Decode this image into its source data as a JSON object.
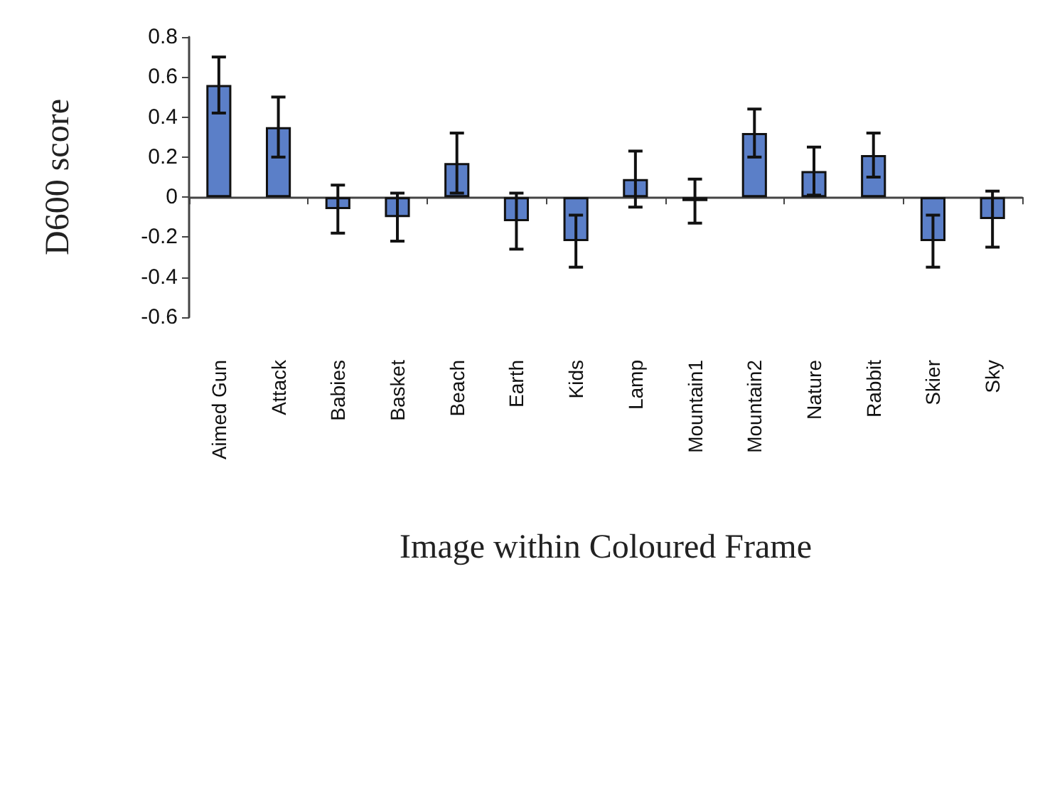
{
  "chart_data": {
    "type": "bar",
    "xlabel": "Image within Coloured Frame",
    "ylabel": "D600 score",
    "categories": [
      "Aimed Gun",
      "Attack",
      "Babies",
      "Basket",
      "Beach",
      "Earth",
      "Kids",
      "Lamp",
      "Mountain1",
      "Mountain2",
      "Nature",
      "Rabbit",
      "Skier",
      "Sky"
    ],
    "values": [
      0.56,
      0.35,
      -0.06,
      -0.1,
      0.17,
      -0.12,
      -0.22,
      0.09,
      -0.02,
      0.32,
      0.13,
      0.21,
      -0.22,
      -0.11
    ],
    "errors": [
      0.14,
      0.15,
      0.12,
      0.12,
      0.15,
      0.14,
      0.13,
      0.14,
      0.11,
      0.12,
      0.12,
      0.11,
      0.13,
      0.14
    ],
    "color": "#5b7fc8",
    "ylim": [
      -0.6,
      0.8
    ],
    "yticks": [
      -0.6,
      -0.4,
      -0.2,
      0,
      0.2,
      0.4,
      0.6,
      0.8
    ]
  }
}
